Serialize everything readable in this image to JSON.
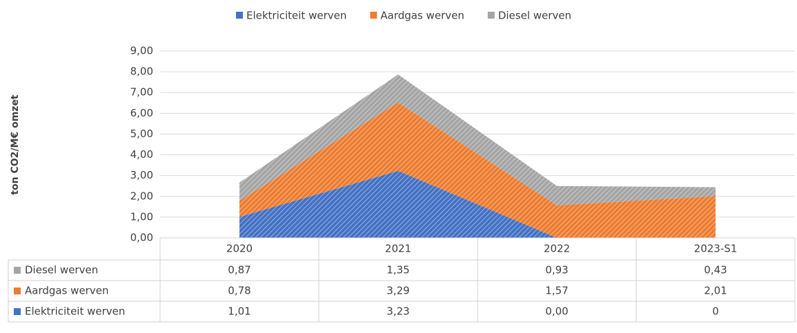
{
  "chart_data": {
    "type": "stacked_area",
    "y_label": "ton CO2/M€ omzet",
    "categories": [
      "2020",
      "2021",
      "2022",
      "2023-S1"
    ],
    "series": [
      {
        "name": "Elektriciteit werven",
        "color": "#4472c4",
        "values": [
          1.01,
          3.23,
          0.0,
          0
        ],
        "value_labels": [
          "1,01",
          "3,23",
          "0,00",
          "0"
        ]
      },
      {
        "name": "Aardgas werven",
        "color": "#ed7d31",
        "values": [
          0.78,
          3.29,
          1.57,
          2.01
        ],
        "value_labels": [
          "0,78",
          "3,29",
          "1,57",
          "2,01"
        ]
      },
      {
        "name": "Diesel werven",
        "color": "#a5a5a5",
        "values": [
          0.87,
          1.35,
          0.93,
          0.43
        ],
        "value_labels": [
          "0,87",
          "1,35",
          "0,93",
          "0,43"
        ]
      }
    ],
    "ylim": [
      0,
      9
    ],
    "yticks": [
      {
        "value": 0,
        "label": "0,00"
      },
      {
        "value": 1,
        "label": "1,00"
      },
      {
        "value": 2,
        "label": "2,00"
      },
      {
        "value": 3,
        "label": "3,00"
      },
      {
        "value": 4,
        "label": "4,00"
      },
      {
        "value": 5,
        "label": "5,00"
      },
      {
        "value": 6,
        "label": "6,00"
      },
      {
        "value": 7,
        "label": "7,00"
      },
      {
        "value": 8,
        "label": "8,00"
      },
      {
        "value": 9,
        "label": "9,00"
      }
    ],
    "grid": true,
    "legend": "top",
    "hatched": true
  }
}
